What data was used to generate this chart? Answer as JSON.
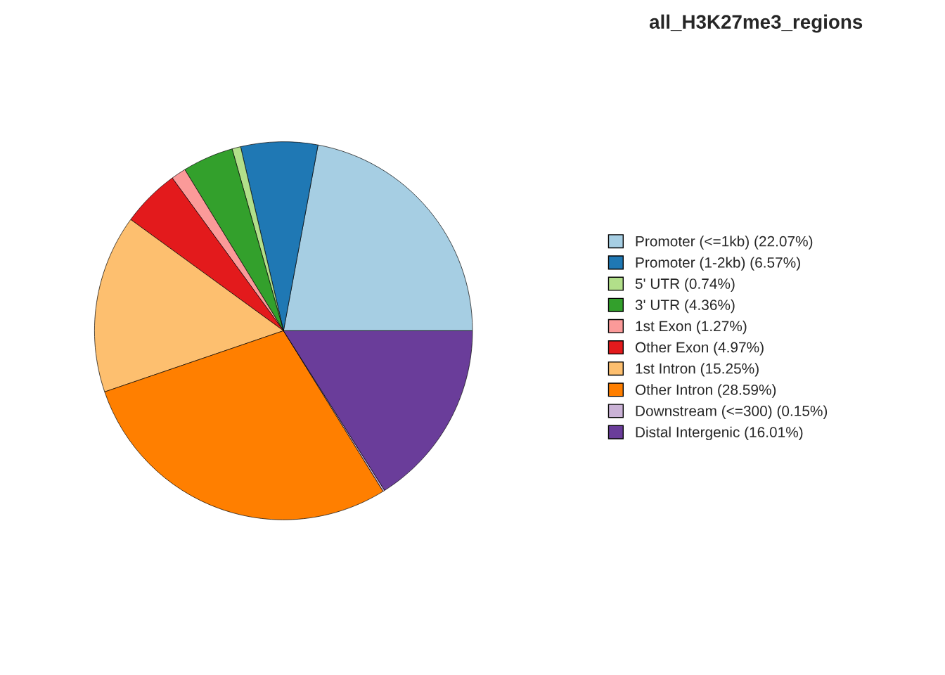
{
  "chart_data": {
    "type": "pie",
    "title": "all_H3K27me3_regions",
    "categories": [
      "Promoter (<=1kb) (22.07%)",
      "Promoter (1-2kb) (6.57%)",
      "5' UTR (0.74%)",
      "3' UTR (4.36%)",
      "1st Exon (1.27%)",
      "Other Exon (4.97%)",
      "1st Intron (15.25%)",
      "Other Intron (28.59%)",
      "Downstream (<=300) (0.15%)",
      "Distal Intergenic (16.01%)"
    ],
    "values": [
      22.07,
      6.57,
      0.74,
      4.36,
      1.27,
      4.97,
      15.25,
      28.59,
      0.15,
      16.01
    ],
    "colors": [
      "#a6cee3",
      "#1f78b4",
      "#b2df8a",
      "#33a02c",
      "#fb9a99",
      "#e31a1c",
      "#fdbf6f",
      "#ff7f00",
      "#cab2d6",
      "#6a3d9a"
    ],
    "legend": "right"
  }
}
